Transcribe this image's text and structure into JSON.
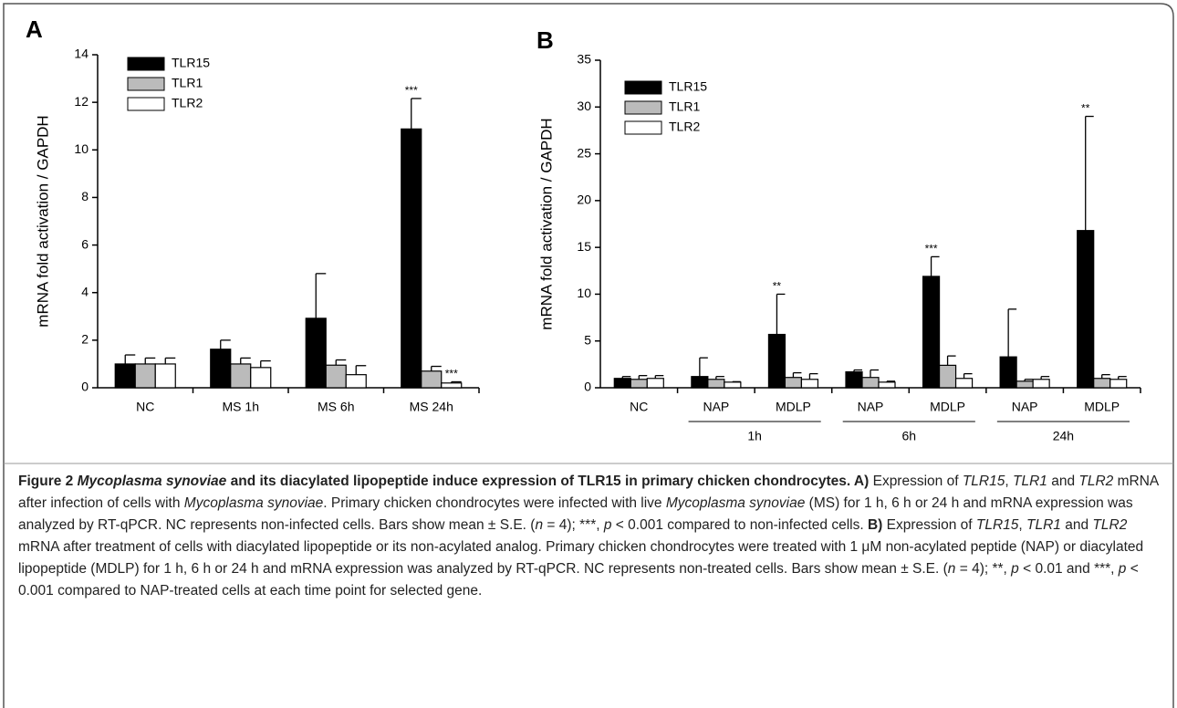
{
  "chart_data": [
    {
      "type": "bar",
      "panel_label": "A",
      "y_label": "mRNA fold activation / GAPDH",
      "categories": [
        "NC",
        "MS 1h",
        "MS 6h",
        "MS 24h"
      ],
      "ylim": [
        0,
        14
      ],
      "yticks": [
        0,
        2,
        4,
        6,
        8,
        10,
        12,
        14
      ],
      "series": [
        {
          "name": "TLR15",
          "color": "#000000",
          "values": [
            1.0,
            1.62,
            2.92,
            10.88
          ],
          "errors": [
            0.38,
            0.38,
            1.88,
            1.28
          ],
          "labels": [
            null,
            null,
            null,
            "***"
          ]
        },
        {
          "name": "TLR1",
          "color": "#bbbbbb",
          "values": [
            1.0,
            1.0,
            0.95,
            0.7
          ],
          "errors": [
            0.25,
            0.25,
            0.22,
            0.2
          ],
          "labels": [
            null,
            null,
            null,
            null
          ]
        },
        {
          "name": "TLR2",
          "color": "#ffffff",
          "values": [
            1.0,
            0.85,
            0.55,
            0.2
          ],
          "errors": [
            0.25,
            0.28,
            0.38,
            0.05
          ],
          "labels": [
            null,
            null,
            null,
            "***"
          ]
        }
      ]
    },
    {
      "type": "bar",
      "panel_label": "B",
      "y_label": "mRNA fold activation / GAPDH",
      "categories": [
        "NC",
        "NAP",
        "MDLP",
        "NAP",
        "MDLP",
        "NAP",
        "MDLP"
      ],
      "groups": [
        {
          "label": "1h",
          "categories": [
            1,
            2
          ]
        },
        {
          "label": "6h",
          "categories": [
            3,
            4
          ]
        },
        {
          "label": "24h",
          "categories": [
            5,
            6
          ]
        }
      ],
      "ylim": [
        0,
        35
      ],
      "yticks": [
        0,
        5,
        10,
        15,
        20,
        25,
        30,
        35
      ],
      "series": [
        {
          "name": "TLR15",
          "color": "#000000",
          "values": [
            1.0,
            1.2,
            5.7,
            1.7,
            11.9,
            3.3,
            16.8
          ],
          "errors": [
            0.2,
            2.0,
            4.3,
            0.2,
            2.1,
            5.1,
            12.2
          ],
          "labels": [
            null,
            null,
            "**",
            null,
            "***",
            null,
            "**"
          ]
        },
        {
          "name": "TLR1",
          "color": "#bbbbbb",
          "values": [
            0.9,
            0.9,
            1.1,
            1.1,
            2.4,
            0.7,
            1.0
          ],
          "errors": [
            0.4,
            0.3,
            0.5,
            0.8,
            1.0,
            0.2,
            0.4
          ],
          "labels": [
            null,
            null,
            null,
            null,
            null,
            null,
            null
          ]
        },
        {
          "name": "TLR2",
          "color": "#ffffff",
          "values": [
            1.0,
            0.6,
            0.9,
            0.6,
            1.0,
            0.9,
            0.9
          ],
          "errors": [
            0.3,
            0.05,
            0.6,
            0.1,
            0.5,
            0.3,
            0.3
          ],
          "labels": [
            null,
            null,
            null,
            null,
            null,
            null,
            null
          ]
        }
      ]
    }
  ],
  "caption": {
    "runs": [
      {
        "text": "Figure 2 ",
        "style": "bold"
      },
      {
        "text": "Mycoplasma synoviae",
        "style": "bold-italic"
      },
      {
        "text": " and its diacylated lipopeptide induce expression of TLR15 in primary chicken chondrocytes. A)",
        "style": "bold"
      },
      {
        "text": " Expression of ",
        "style": "normal"
      },
      {
        "text": "TLR15",
        "style": "italic"
      },
      {
        "text": ", ",
        "style": "normal"
      },
      {
        "text": "TLR1",
        "style": "italic"
      },
      {
        "text": " and ",
        "style": "normal"
      },
      {
        "text": "TLR2",
        "style": "italic"
      },
      {
        "text": " mRNA after infection of cells with ",
        "style": "normal"
      },
      {
        "text": "Mycoplasma synoviae",
        "style": "italic"
      },
      {
        "text": ". Primary chicken chondrocytes were infected with live ",
        "style": "normal"
      },
      {
        "text": "Mycoplasma synoviae",
        "style": "italic"
      },
      {
        "text": " (MS) for 1 h, 6 h or 24 h and mRNA expression was analyzed by RT-qPCR. NC represents non-infected cells. Bars show mean ± S.E. (",
        "style": "normal"
      },
      {
        "text": "n",
        "style": "italic"
      },
      {
        "text": " = 4); ***, ",
        "style": "normal"
      },
      {
        "text": "p",
        "style": "italic"
      },
      {
        "text": " < 0.001 compared to non-infected cells. ",
        "style": "normal"
      },
      {
        "text": "B)",
        "style": "bold"
      },
      {
        "text": " Expression of ",
        "style": "normal"
      },
      {
        "text": "TLR15",
        "style": "italic"
      },
      {
        "text": ", ",
        "style": "normal"
      },
      {
        "text": "TLR1",
        "style": "italic"
      },
      {
        "text": " and ",
        "style": "normal"
      },
      {
        "text": "TLR2",
        "style": "italic"
      },
      {
        "text": " mRNA after treatment of cells with diacylated lipopeptide or its non-acylated analog. Primary chicken chondrocytes were treated with 1 μM non-acylated peptide (NAP) or diacylated lipopeptide (MDLP) for 1 h, 6 h or 24 h and mRNA expression was analyzed by RT-qPCR. NC represents non-treated cells. Bars show mean ± S.E. (",
        "style": "normal"
      },
      {
        "text": "n",
        "style": "italic"
      },
      {
        "text": " = 4); **, ",
        "style": "normal"
      },
      {
        "text": "p",
        "style": "italic"
      },
      {
        "text": " < 0.01 and ***, ",
        "style": "normal"
      },
      {
        "text": "p",
        "style": "italic"
      },
      {
        "text": " < 0.001 compared to NAP-treated cells at each time point for selected gene.",
        "style": "normal"
      }
    ]
  }
}
